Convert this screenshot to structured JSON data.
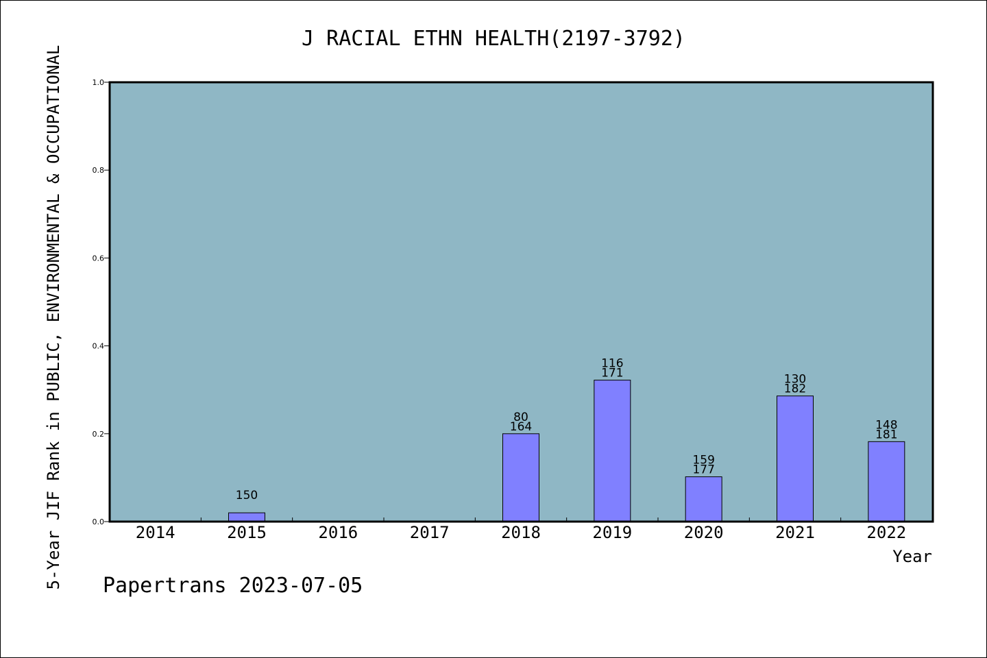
{
  "chart_data": {
    "type": "bar",
    "title": "J RACIAL ETHN HEALTH(2197-3792)",
    "xlabel": "Year",
    "ylabel": "5-Year JIF Rank in PUBLIC, ENVIRONMENTAL & OCCUPATIONAL",
    "categories": [
      "2014",
      "2015",
      "2016",
      "2017",
      "2018",
      "2019",
      "2020",
      "2021",
      "2022"
    ],
    "values": [
      null,
      0.02,
      null,
      null,
      0.2,
      0.322,
      0.102,
      0.286,
      0.182
    ],
    "bar_labels": [
      [],
      [
        "150"
      ],
      [],
      [],
      [
        "80",
        "164"
      ],
      [
        "116",
        "171"
      ],
      [
        "159",
        "177"
      ],
      [
        "130",
        "182"
      ],
      [
        "148",
        "181"
      ]
    ],
    "ylim": [
      0,
      1.0
    ],
    "yticks": [
      "0.0",
      "0.2",
      "0.4",
      "0.6",
      "0.8",
      "1.0"
    ],
    "grid": false,
    "colors": {
      "plot_background": "#8fb7c5",
      "bar_fill": "#8080ff",
      "bar_stroke": "#000000"
    }
  },
  "footer": {
    "credit": "Papertrans 2023-07-05"
  }
}
